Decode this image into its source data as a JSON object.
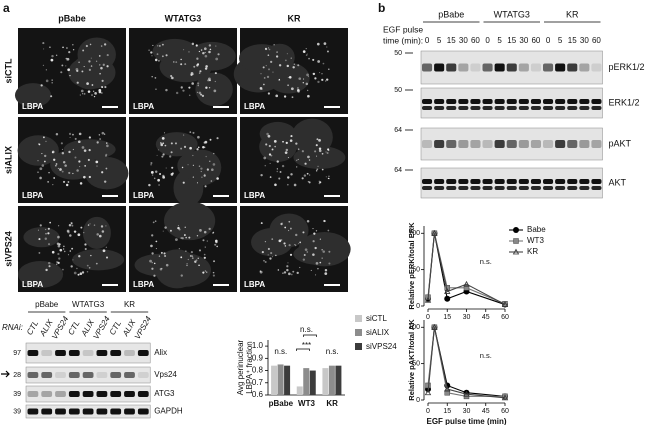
{
  "panel_a": {
    "label": "a",
    "columns": [
      "pBabe",
      "WTATG3",
      "KR"
    ],
    "rows": [
      "siCTL",
      "siALIX",
      "siVPS24"
    ],
    "image_label": "LBPA"
  },
  "blot_a": {
    "groups": [
      "pBabe",
      "WTATG3",
      "KR"
    ],
    "rnai_label": "RNAi:",
    "lanes": [
      "CTL",
      "ALIX",
      "VPS24"
    ],
    "rows": [
      {
        "name": "Alix",
        "marker": 97
      },
      {
        "name": "Vps24",
        "marker": 28
      },
      {
        "name": "ATG3",
        "marker": 39
      },
      {
        "name": "GAPDH",
        "marker": 39
      }
    ]
  },
  "panel_b": {
    "label": "b"
  },
  "blot_b": {
    "groups": [
      "pBabe",
      "WTATG3",
      "KR"
    ],
    "time_label": [
      "EGF pulse",
      "time (min):"
    ],
    "times": [
      0,
      5,
      15,
      30,
      60
    ],
    "rows": [
      {
        "name": "pERK1/2",
        "marker": 50
      },
      {
        "name": "ERK1/2",
        "marker": 50
      },
      {
        "name": "pAKT",
        "marker": 64
      },
      {
        "name": "AKT",
        "marker": 64
      }
    ]
  },
  "chart_data": [
    {
      "type": "bar",
      "ylabel": [
        "Avg perinuclear",
        "LBPA⁺ fraction"
      ],
      "categories": [
        "pBabe",
        "WT3",
        "KR"
      ],
      "series": [
        {
          "name": "siCTL",
          "color": "#c8c8c8",
          "values": [
            0.84,
            0.67,
            0.82
          ]
        },
        {
          "name": "siALIX",
          "color": "#8c8c8c",
          "values": [
            0.85,
            0.82,
            0.84
          ]
        },
        {
          "name": "siVPS24",
          "color": "#3c3c3c",
          "values": [
            0.84,
            0.8,
            0.84
          ]
        }
      ],
      "ylim": [
        0.6,
        1.05
      ],
      "yticks": [
        0.6,
        0.7,
        0.8,
        0.9,
        {
          "value": 1,
          "label": "1.0"
        }
      ],
      "annotations": [
        "n.s.",
        "***",
        "n.s.",
        "n.s."
      ]
    },
    {
      "type": "line",
      "ylabel": "Relative pERK/total ERK",
      "x": [
        0,
        5,
        15,
        30,
        60
      ],
      "series": [
        {
          "name": "Babe",
          "color": "#000000",
          "values": [
            10,
            100,
            10,
            20,
            2
          ]
        },
        {
          "name": "WT3",
          "color": "#777777",
          "values": [
            12,
            100,
            25,
            25,
            3
          ]
        },
        {
          "name": "KR",
          "color": "#444444",
          "values": [
            8,
            100,
            20,
            30,
            2
          ]
        }
      ],
      "xlim": [
        0,
        60
      ],
      "xticks": [
        0,
        15,
        30,
        45,
        60
      ],
      "ylim": [
        0,
        110
      ],
      "yticks": [
        0,
        50,
        100
      ],
      "annotations": [
        "n.s."
      ]
    },
    {
      "type": "line",
      "ylabel": "Relative pAKT/total AK",
      "xlabel": "EGF pulse time (min)",
      "x": [
        0,
        5,
        15,
        30,
        60
      ],
      "series": [
        {
          "name": "Babe",
          "color": "#000000",
          "values": [
            15,
            100,
            20,
            10,
            5
          ]
        },
        {
          "name": "WT3",
          "color": "#777777",
          "values": [
            20,
            100,
            10,
            5,
            5
          ]
        },
        {
          "name": "KR",
          "color": "#444444",
          "values": [
            10,
            100,
            15,
            8,
            3
          ]
        }
      ],
      "xlim": [
        0,
        60
      ],
      "xticks": [
        0,
        15,
        30,
        45,
        60
      ],
      "ylim": [
        0,
        110
      ],
      "yticks": [
        0,
        50,
        100
      ],
      "annotations": [
        "n.s."
      ]
    }
  ]
}
